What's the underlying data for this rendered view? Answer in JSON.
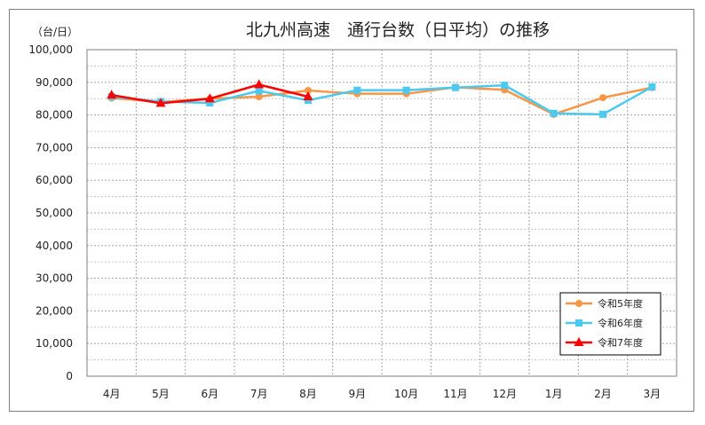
{
  "chart_data": {
    "type": "line",
    "title": "北九州高速　通行台数（日平均）の推移",
    "ylabel": "（台/日）",
    "xlabel": "",
    "categories": [
      "4月",
      "5月",
      "6月",
      "7月",
      "8月",
      "9月",
      "10月",
      "11月",
      "12月",
      "1月",
      "2月",
      "3月"
    ],
    "ylim": [
      0,
      100000
    ],
    "yticks": [
      0,
      10000,
      20000,
      30000,
      40000,
      50000,
      60000,
      70000,
      80000,
      90000,
      100000
    ],
    "ytick_labels": [
      "0",
      "10,000",
      "20,000",
      "30,000",
      "40,000",
      "50,000",
      "60,000",
      "70,000",
      "80,000",
      "90,000",
      "100,000"
    ],
    "grid": true,
    "legend_position": "bottom-right",
    "series": [
      {
        "name": "令和5年度",
        "color": "#f79646",
        "marker": "circle",
        "values": [
          85200,
          84000,
          85000,
          85600,
          87500,
          86500,
          86500,
          88500,
          87700,
          80200,
          85300,
          88400
        ]
      },
      {
        "name": "令和6年度",
        "color": "#4bc9f0",
        "marker": "square",
        "values": [
          85600,
          84100,
          83700,
          87400,
          84500,
          87600,
          87600,
          88400,
          89100,
          80500,
          80200,
          88600
        ]
      },
      {
        "name": "令和7年度",
        "color": "#ff0000",
        "marker": "triangle",
        "values": [
          86100,
          83600,
          85000,
          89300,
          85600,
          null,
          null,
          null,
          null,
          null,
          null,
          null
        ]
      }
    ]
  }
}
